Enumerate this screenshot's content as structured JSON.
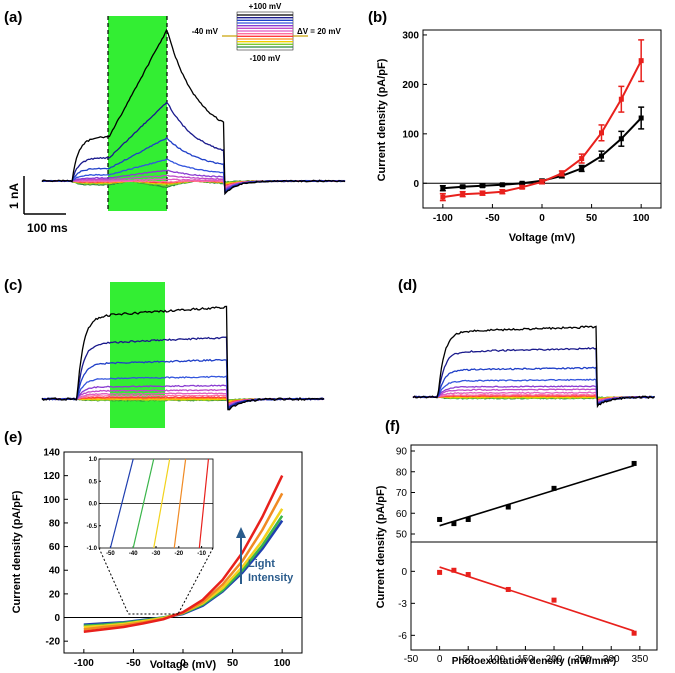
{
  "figure": {
    "panel_labels": [
      "(a)",
      "(b)",
      "(c)",
      "(d)",
      "(e)",
      "(f)"
    ],
    "scale_bar": {
      "current": "1 nA",
      "time": "100 ms"
    },
    "protocol": {
      "top": "+100 mV",
      "bottom": "-100 mV",
      "hold": "-40 mV",
      "step": "ΔV = 20 mV"
    }
  },
  "trace_colors": [
    "#000000",
    "#1a1a8c",
    "#1f3fc8",
    "#3355dd",
    "#8a3bd1",
    "#c04ac8",
    "#e05cc0",
    "#ff6fa0",
    "#ff3b3b",
    "#ff8c1a",
    "#f0d000",
    "#7ccc2a",
    "#2b8a3e"
  ],
  "chart_data": [
    {
      "type": "line",
      "panel": "(b)",
      "xlabel": "Voltage (mV)",
      "ylabel": "Current density (pA/pF)",
      "xlim": [
        -120,
        120
      ],
      "ylim": [
        -50,
        310
      ],
      "xticks": [
        -100,
        -50,
        0,
        50,
        100
      ],
      "yticks": [
        0,
        100,
        200,
        300
      ],
      "x": [
        -100,
        -80,
        -60,
        -40,
        -20,
        0,
        20,
        40,
        60,
        80,
        100
      ],
      "series": [
        {
          "name": "black",
          "color": "#000000",
          "values": [
            -10,
            -7,
            -5,
            -3,
            0,
            5,
            15,
            30,
            55,
            90,
            132
          ],
          "errors": [
            5,
            3,
            3,
            2,
            2,
            3,
            4,
            6,
            10,
            15,
            22
          ]
        },
        {
          "name": "red",
          "color": "#e8201c",
          "values": [
            -28,
            -22,
            -20,
            -17,
            -8,
            3,
            20,
            50,
            102,
            170,
            248
          ],
          "errors": [
            7,
            5,
            4,
            4,
            3,
            4,
            5,
            9,
            16,
            26,
            42
          ]
        }
      ]
    },
    {
      "type": "line",
      "panel": "(e)",
      "xlabel": "Voltage (mV)",
      "ylabel": "Current density (pA/pF)",
      "xlim": [
        -120,
        120
      ],
      "ylim": [
        -30,
        140
      ],
      "xticks": [
        -100,
        -50,
        0,
        50,
        100
      ],
      "yticks": [
        -20,
        0,
        20,
        40,
        60,
        80,
        100,
        120,
        140
      ],
      "annotation": [
        "Light",
        "Intensity"
      ],
      "x": [
        -100,
        -80,
        -60,
        -40,
        -20,
        0,
        20,
        40,
        60,
        80,
        100
      ],
      "series": [
        {
          "name": "blue",
          "color": "#1f3fb0",
          "values": [
            -6,
            -5,
            -4,
            -2,
            0,
            3,
            10,
            22,
            38,
            58,
            82
          ]
        },
        {
          "name": "green",
          "color": "#3ab54a",
          "values": [
            -7,
            -6,
            -4.5,
            -2.5,
            0,
            3.5,
            11,
            23,
            40,
            61,
            86
          ]
        },
        {
          "name": "yellow",
          "color": "#f2d21c",
          "values": [
            -8,
            -7,
            -5.5,
            -3,
            -0.5,
            4,
            12,
            25,
            43,
            65,
            92
          ]
        },
        {
          "name": "orange",
          "color": "#f08a24",
          "values": [
            -10,
            -8,
            -6.5,
            -4,
            -1,
            4,
            13,
            28,
            48,
            74,
            105
          ]
        },
        {
          "name": "red",
          "color": "#e8201c",
          "values": [
            -12,
            -10,
            -8,
            -5,
            -1.5,
            4.5,
            15,
            32,
            55,
            85,
            120
          ]
        }
      ],
      "inset": {
        "xticks": [
          -50,
          -40,
          -30,
          -20,
          -10
        ],
        "yticks": [
          "1.0",
          "0.5",
          "0.0",
          "-0.5",
          "-1.0"
        ],
        "xlim": [
          -55,
          -5
        ],
        "ylim": [
          -1,
          1
        ],
        "lines": [
          {
            "color": "#1f3fb0",
            "x0": -50,
            "x1": -40
          },
          {
            "color": "#3ab54a",
            "x0": -40,
            "x1": -31
          },
          {
            "color": "#f2d21c",
            "x0": -31,
            "x1": -24
          },
          {
            "color": "#f08a24",
            "x0": -22,
            "x1": -17
          },
          {
            "color": "#e8201c",
            "x0": -11,
            "x1": -7
          }
        ]
      }
    },
    {
      "type": "scatter",
      "panel": "(f)",
      "xlabel": "Photoexcitation density (mW/mm²)",
      "ylabel": "Current density (pA/pF)",
      "xlim": [
        -50,
        380
      ],
      "xticks": [
        -50,
        0,
        50,
        100,
        150,
        200,
        250,
        300,
        350
      ],
      "top": {
        "color": "#000000",
        "ylim": [
          50,
          90
        ],
        "yticks": [
          50,
          60,
          70,
          80,
          90
        ],
        "x": [
          0,
          25,
          50,
          120,
          200,
          340
        ],
        "y": [
          57,
          55,
          57,
          63,
          72,
          84
        ],
        "fit": [
          [
            0,
            54
          ],
          [
            340,
            83
          ]
        ]
      },
      "bottom": {
        "color": "#e8201c",
        "ylim": [
          -7,
          2
        ],
        "yticks": [
          0,
          -3,
          -6
        ],
        "x": [
          0,
          25,
          50,
          120,
          200,
          340
        ],
        "y": [
          -0.1,
          0.1,
          -0.3,
          -1.7,
          -2.7,
          -5.8
        ],
        "fit": [
          [
            0,
            0.4
          ],
          [
            340,
            -5.6
          ]
        ]
      }
    }
  ]
}
